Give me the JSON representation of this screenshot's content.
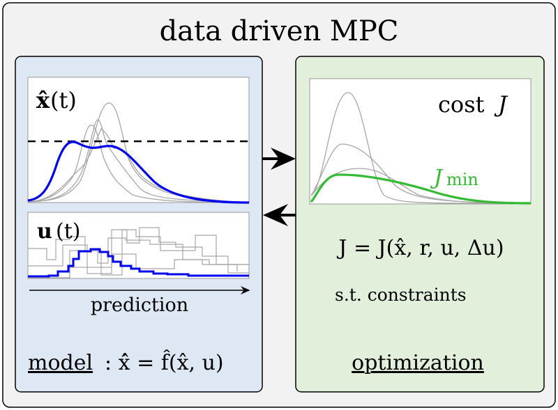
{
  "title": "data driven MPC",
  "model_panel": {
    "state_label_x": "x̂",
    "state_label_t": "(t)",
    "input_label_u": "u",
    "input_label_t": "(t)",
    "prediction_label": "prediction",
    "model_word": "model",
    "model_equation": ": ẋ̂ = f̂(x̂, u)"
  },
  "optimization_panel": {
    "cost_label": "cost",
    "cost_symbol": "J",
    "jmin_J": "J",
    "jmin_sub": "min",
    "cost_equation": "J = J(x̂, r, u, Δu)",
    "constraints": "s.t. constraints",
    "optimization_word": "optimization"
  },
  "colors": {
    "background": "#f2f2f2",
    "model_panel": "#dde8f4",
    "optimization_panel": "#e2efda",
    "prediction_line": "#0000ee",
    "optimal_cost_line": "#33bb33",
    "candidate_lines": "#a6a6a6",
    "jmin_text": "#33bb33"
  }
}
